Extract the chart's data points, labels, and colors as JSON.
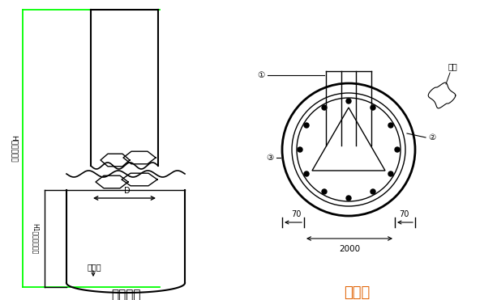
{
  "bg_color": "#ffffff",
  "line_color": "#000000",
  "green_color": "#00ff00",
  "orange_color": "#e06000",
  "title1": "桩身大样",
  "title2": "桩截面",
  "label_H": "H（桩身长）",
  "label_H1": "H1（入岩深度）",
  "label_clz": "持力层",
  "label_D": "D",
  "label_weld": "焊接",
  "label_70L": "70",
  "label_70R": "70",
  "label_2000": "2000",
  "label_1": "①",
  "label_2": "②",
  "label_3": "③"
}
